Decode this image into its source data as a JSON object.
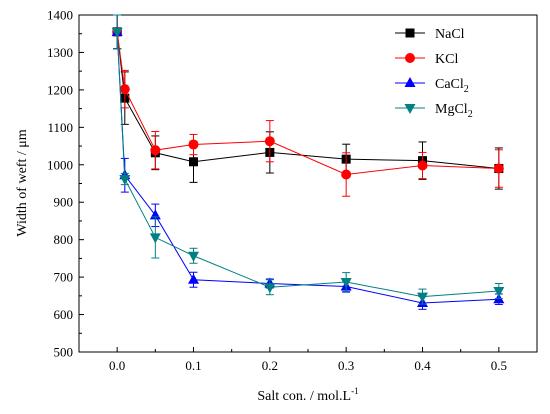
{
  "chart_data": {
    "type": "line",
    "xlabel": "Salt con. / mol.L",
    "xlabel_sup": "-1",
    "ylabel": "Width of weft / μm",
    "xlim": [
      -0.05,
      0.55
    ],
    "ylim": [
      500,
      1400
    ],
    "x_ticks": [
      0.0,
      0.1,
      0.2,
      0.3,
      0.4,
      0.5
    ],
    "x_tick_labels": [
      "0.0",
      "0.1",
      "0.2",
      "0.3",
      "0.4",
      "0.5"
    ],
    "y_ticks": [
      500,
      600,
      700,
      800,
      900,
      1000,
      1100,
      1200,
      1300,
      1400
    ],
    "y_tick_labels": [
      "500",
      "600",
      "700",
      "800",
      "900",
      "1000",
      "1100",
      "1200",
      "1300",
      "1400"
    ],
    "legend_position": "top-right",
    "grid": false,
    "series": [
      {
        "name": "NaCl",
        "name_sub": "",
        "color": "#000000",
        "marker": "square",
        "x": [
          0,
          0.01,
          0.05,
          0.1,
          0.2,
          0.3,
          0.4,
          0.5
        ],
        "y": [
          1355,
          1178,
          1032,
          1008,
          1033,
          1015,
          1011,
          990
        ],
        "err": [
          45,
          70,
          45,
          55,
          55,
          40,
          50,
          55
        ]
      },
      {
        "name": "KCl",
        "name_sub": "",
        "color": "#ff0000",
        "marker": "circle",
        "x": [
          0,
          0.01,
          0.05,
          0.1,
          0.2,
          0.3,
          0.4,
          0.5
        ],
        "y": [
          1355,
          1202,
          1039,
          1054,
          1063,
          974,
          998,
          990
        ],
        "err": [
          45,
          50,
          50,
          27,
          55,
          58,
          35,
          50
        ]
      },
      {
        "name": "CaCl",
        "name_sub": "2",
        "color": "#0000ff",
        "marker": "triangle-up",
        "x": [
          0,
          0.01,
          0.05,
          0.1,
          0.2,
          0.3,
          0.4,
          0.5
        ],
        "y": [
          1355,
          972,
          865,
          693,
          683,
          675,
          631,
          641
        ],
        "err": [
          45,
          45,
          30,
          20,
          12,
          15,
          17,
          14
        ]
      },
      {
        "name": "MgCl",
        "name_sub": "2",
        "color": "#008080",
        "marker": "triangle-down",
        "x": [
          0,
          0.01,
          0.05,
          0.1,
          0.2,
          0.3,
          0.4,
          0.5
        ],
        "y": [
          1355,
          962,
          806,
          757,
          673,
          687,
          648,
          663
        ],
        "err": [
          45,
          15,
          55,
          20,
          20,
          25,
          20,
          20
        ]
      }
    ]
  }
}
